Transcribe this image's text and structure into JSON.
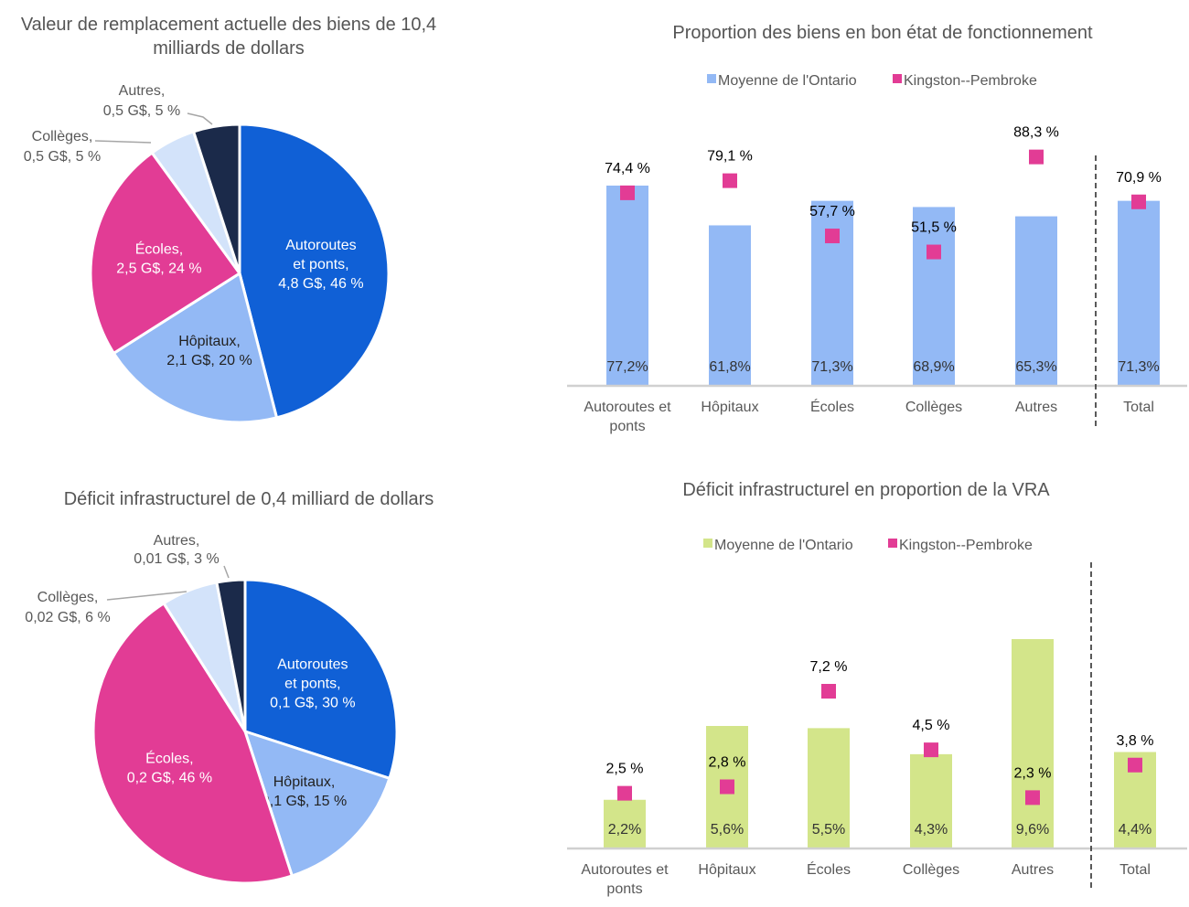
{
  "chart_data": [
    {
      "id": "crv",
      "type": "pie",
      "title": [
        "Valeur de remplacement actuelle des biens de 10,4",
        "milliards de dollars"
      ],
      "slices": [
        {
          "name": "Autoroutes et ponts",
          "value_bn": 4.8,
          "percent": 46,
          "label": [
            "Autoroutes",
            "et ponts,",
            "4,8 G$, 46 %"
          ],
          "color": "#1060d6",
          "text_color": "#ffffff"
        },
        {
          "name": "Hôpitaux",
          "value_bn": 2.1,
          "percent": 20,
          "label": [
            "Hôpitaux,",
            "2,1 G$, 20 %"
          ],
          "color": "#93b9f5",
          "text_color": "#222222"
        },
        {
          "name": "Écoles",
          "value_bn": 2.5,
          "percent": 24,
          "label": [
            "Écoles,",
            "2,5 G$, 24 %"
          ],
          "color": "#e23c95",
          "text_color": "#ffffff"
        },
        {
          "name": "Collèges",
          "value_bn": 0.5,
          "percent": 5,
          "label": [
            "Collèges,",
            "0,5 G$, 5 %"
          ],
          "color": "#d3e3fa",
          "text_color": "#595959",
          "outside": true
        },
        {
          "name": "Autres",
          "value_bn": 0.5,
          "percent": 5,
          "label": [
            "Autres,",
            "0,5 G$, 5 %"
          ],
          "color": "#1b2a4a",
          "text_color": "#595959",
          "outside": true
        }
      ]
    },
    {
      "id": "good_state",
      "type": "bar",
      "title": "Proportion des biens en bon état de fonctionnement",
      "categories": [
        "Autoroutes et ponts",
        "Hôpitaux",
        "Écoles",
        "Collèges",
        "Autres",
        "Total"
      ],
      "category_labels": [
        [
          "Autoroutes et",
          "ponts"
        ],
        [
          "Hôpitaux"
        ],
        [
          "Écoles"
        ],
        [
          "Collèges"
        ],
        [
          "Autres"
        ],
        [
          "Total"
        ]
      ],
      "legend": [
        "Moyenne de l'Ontario",
        "Kingston--Pembroke"
      ],
      "legend_position": "top-center",
      "series": [
        {
          "name": "Moyenne de l'Ontario",
          "kind": "bar",
          "color": "#93b9f5",
          "values": [
            77.2,
            61.8,
            71.3,
            68.9,
            65.3,
            71.3
          ],
          "labels": [
            "77,2%",
            "61,8%",
            "71,3%",
            "68,9%",
            "65,3%",
            "71,3%"
          ]
        },
        {
          "name": "Kingston--Pembroke",
          "kind": "marker",
          "color": "#e23c95",
          "values": [
            74.4,
            79.1,
            57.7,
            51.5,
            88.3,
            70.9
          ],
          "labels": [
            "74,4 %",
            "79,1 %",
            "57,7 %",
            "51,5 %",
            "88,3 %",
            "70,9 %"
          ]
        }
      ],
      "ylim": [
        0,
        95
      ],
      "separator_before": "Total",
      "grid": false
    },
    {
      "id": "deficit",
      "type": "pie",
      "title": [
        "Déficit infrastructurel de 0,4 milliard de dollars"
      ],
      "slices": [
        {
          "name": "Autoroutes et ponts",
          "value_bn": 0.1,
          "percent": 30,
          "label": [
            "Autoroutes",
            "et ponts,",
            "0,1 G$, 30 %"
          ],
          "color": "#1060d6",
          "text_color": "#ffffff"
        },
        {
          "name": "Hôpitaux",
          "value_bn": 0.1,
          "percent": 15,
          "label": [
            "Hôpitaux,",
            "0,1 G$, 15 %"
          ],
          "color": "#93b9f5",
          "text_color": "#222222"
        },
        {
          "name": "Écoles",
          "value_bn": 0.2,
          "percent": 46,
          "label": [
            "Écoles,",
            "0,2 G$, 46 %"
          ],
          "color": "#e23c95",
          "text_color": "#ffffff"
        },
        {
          "name": "Collèges",
          "value_bn": 0.02,
          "percent": 6,
          "label": [
            "Collèges,",
            "0,02 G$, 6 %"
          ],
          "color": "#d3e3fa",
          "text_color": "#595959",
          "outside": true
        },
        {
          "name": "Autres",
          "value_bn": 0.01,
          "percent": 3,
          "label": [
            "Autres,",
            "0,01 G$, 3 %"
          ],
          "color": "#1b2a4a",
          "text_color": "#595959",
          "outside": true
        }
      ]
    },
    {
      "id": "deficit_ratio",
      "type": "bar",
      "title": "Déficit infrastructurel en proportion de la VRA",
      "categories": [
        "Autoroutes et ponts",
        "Hôpitaux",
        "Écoles",
        "Collèges",
        "Autres",
        "Total"
      ],
      "category_labels": [
        [
          "Autoroutes et",
          "ponts"
        ],
        [
          "Hôpitaux"
        ],
        [
          "Écoles"
        ],
        [
          "Collèges"
        ],
        [
          "Autres"
        ],
        [
          "Total"
        ]
      ],
      "legend": [
        "Moyenne de l'Ontario",
        "Kingston--Pembroke"
      ],
      "legend_position": "top-center",
      "series": [
        {
          "name": "Moyenne de l'Ontario",
          "kind": "bar",
          "color": "#d3e58a",
          "values": [
            2.2,
            5.6,
            5.5,
            4.3,
            9.6,
            4.4
          ],
          "labels": [
            "2,2%",
            "5,6%",
            "5,5%",
            "4,3%",
            "9,6%",
            "4,4%"
          ]
        },
        {
          "name": "Kingston--Pembroke",
          "kind": "marker",
          "color": "#e23c95",
          "values": [
            2.5,
            2.8,
            7.2,
            4.5,
            2.3,
            3.8
          ],
          "labels": [
            "2,5 %",
            "2,8 %",
            "7,2 %",
            "4,5 %",
            "2,3 %",
            "3,8 %"
          ]
        }
      ],
      "ylim": [
        0,
        13.5
      ],
      "separator_before": "Total",
      "grid": false
    }
  ]
}
